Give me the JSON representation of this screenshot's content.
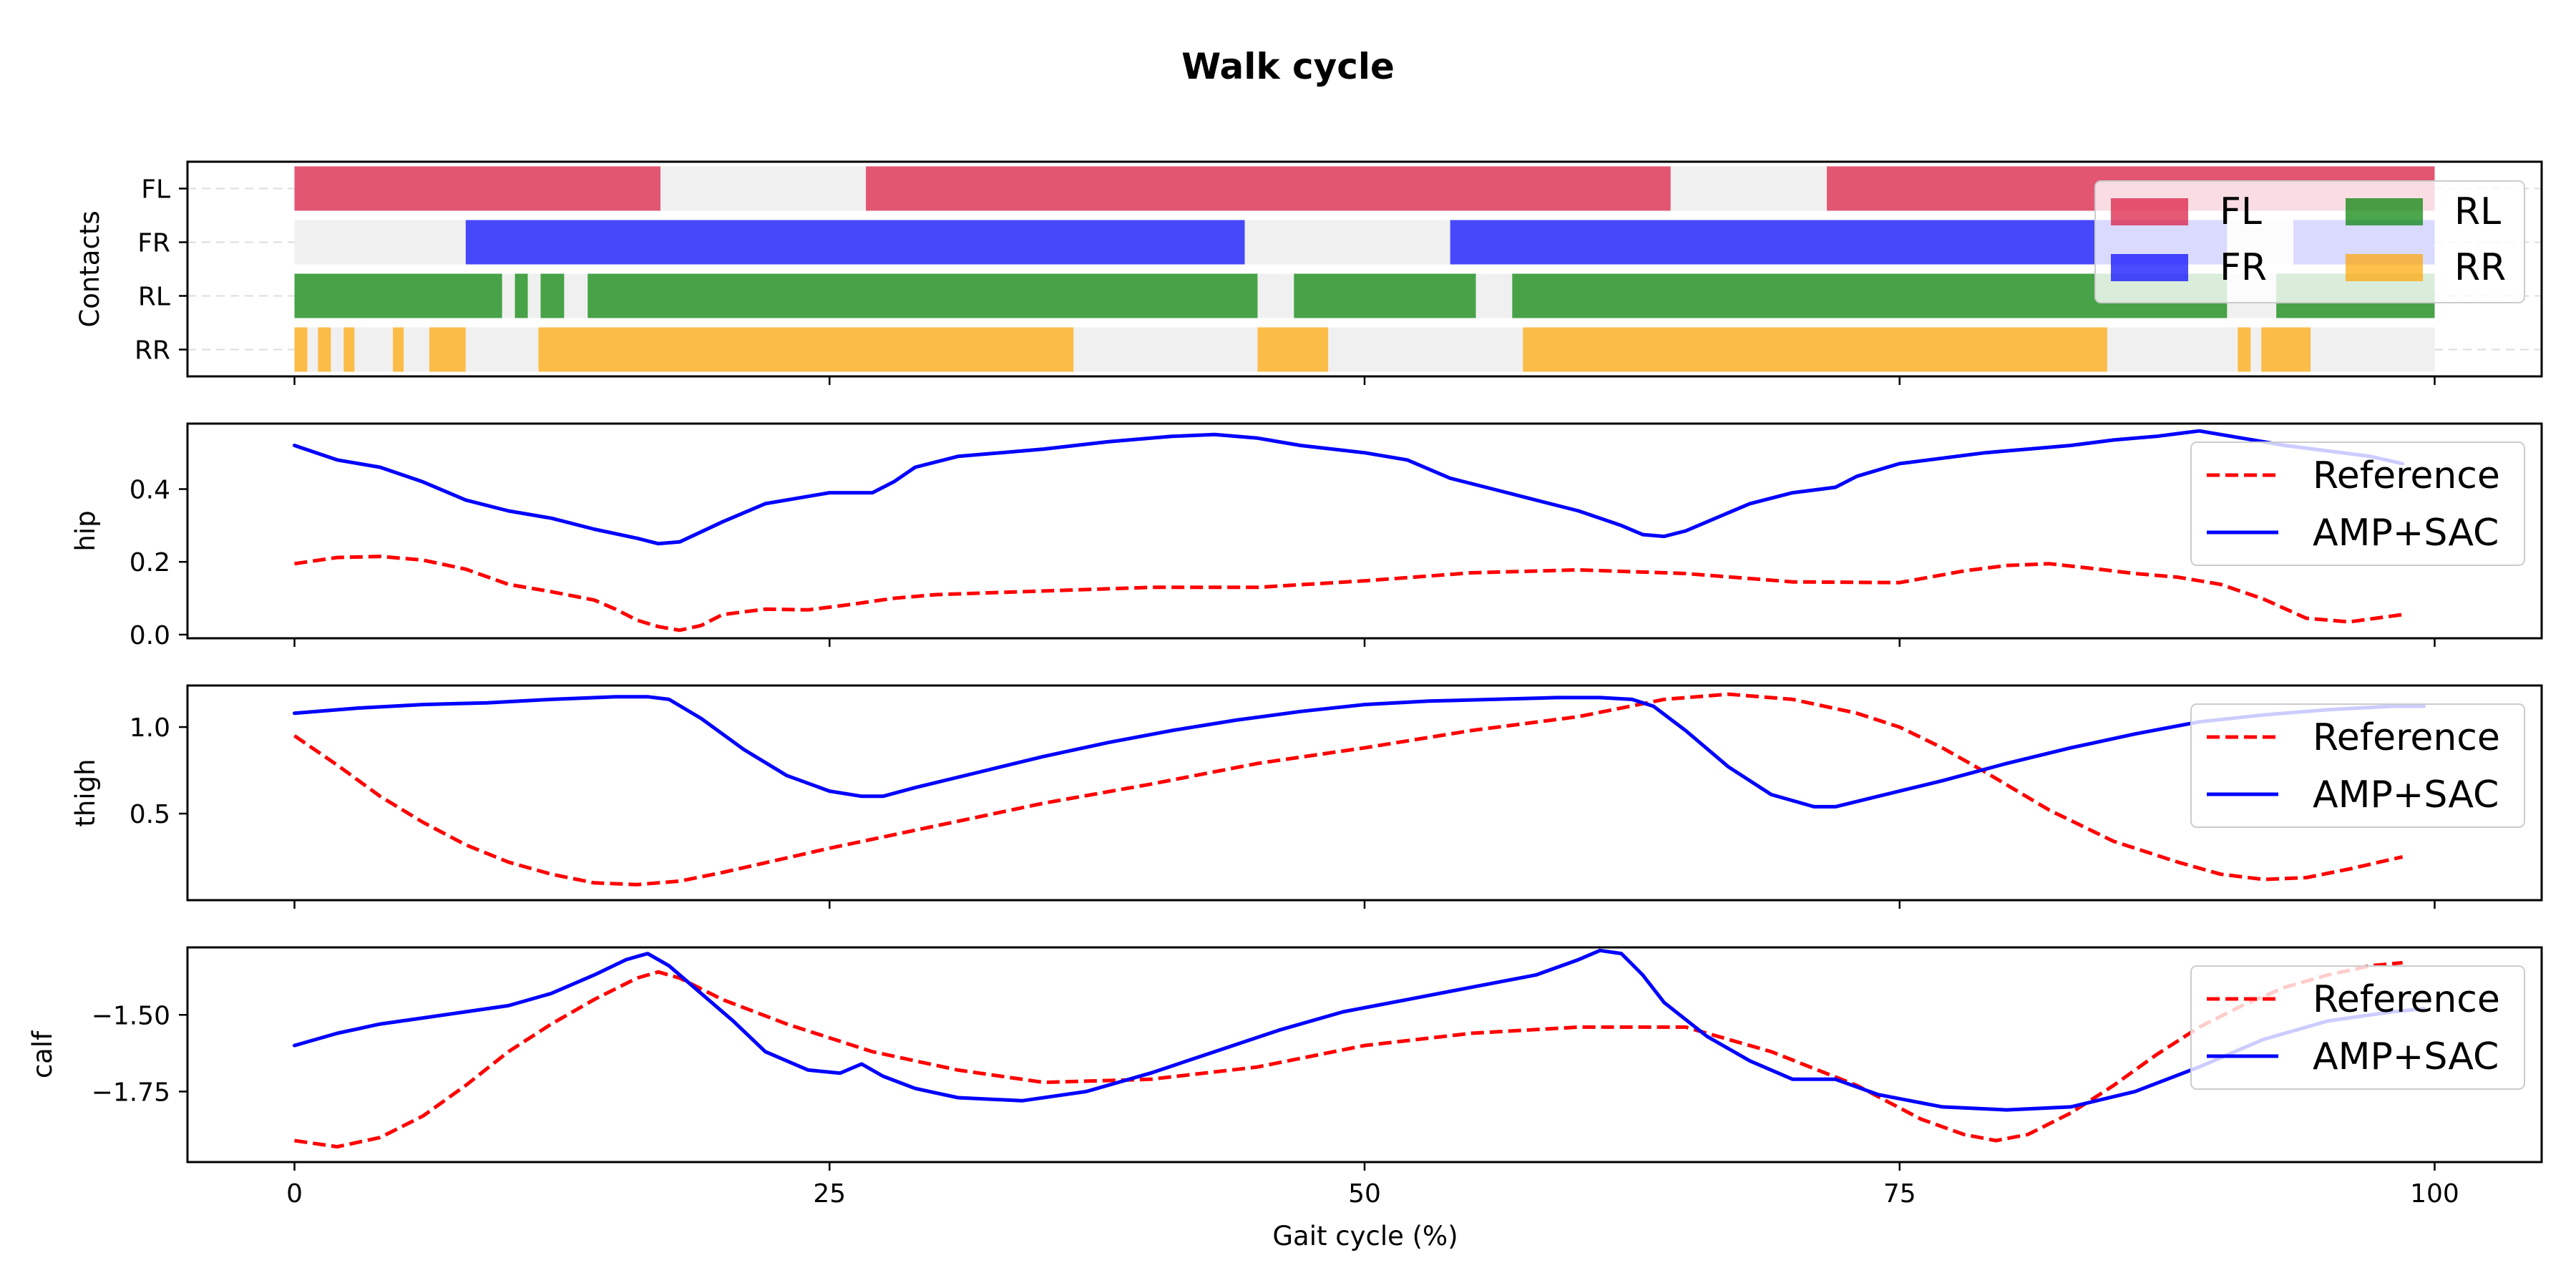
{
  "chart_data": {
    "title": "Walk cycle",
    "type": "multi-panel",
    "xlabel": "Gait cycle (%)",
    "xlim": [
      -5,
      105
    ],
    "xticks": [
      0,
      25,
      50,
      75,
      100
    ],
    "colors": {
      "FL": "#dc143c",
      "FR": "#0000ff",
      "RL": "#008000",
      "RR": "#ffa500",
      "reference": "#ff0000",
      "policy": "#0000ff",
      "background": "#f0f0f0"
    },
    "contacts": {
      "type": "timeline",
      "ylabel": "Contacts",
      "feet": [
        "FL",
        "FR",
        "RL",
        "RR"
      ],
      "legend": [
        "FL",
        "FR",
        "RL",
        "RR"
      ],
      "background_span": [
        0,
        100
      ],
      "intervals": {
        "FL": [
          [
            0,
            17.1
          ],
          [
            26.7,
            64.3
          ],
          [
            71.6,
            100
          ]
        ],
        "FR": [
          [
            8,
            44.4
          ],
          [
            54,
            90.3
          ],
          [
            93.4,
            100
          ]
        ],
        "RL": [
          [
            0,
            9.7
          ],
          [
            10.3,
            10.9
          ],
          [
            11.5,
            12.6
          ],
          [
            13.7,
            45
          ],
          [
            46.7,
            55.2
          ],
          [
            56.9,
            90.3
          ],
          [
            92.6,
            100
          ]
        ],
        "RR": [
          [
            0,
            0.6
          ],
          [
            1.1,
            1.7
          ],
          [
            2.3,
            2.8
          ],
          [
            4.6,
            5.1
          ],
          [
            6.3,
            8
          ],
          [
            11.4,
            36.4
          ],
          [
            45,
            48.3
          ],
          [
            57.4,
            84.7
          ],
          [
            90.8,
            91.4
          ],
          [
            91.9,
            94.2
          ]
        ]
      }
    },
    "series_names": [
      "Reference",
      "AMP+SAC"
    ],
    "panels": [
      {
        "ylabel": "hip",
        "ylim": [
          -0.01,
          0.58
        ],
        "yticks": [
          0.0,
          0.2,
          0.4
        ],
        "ytick_labels": [
          "0.0",
          "0.2",
          "0.4"
        ],
        "series": [
          {
            "name": "Reference",
            "style": "dashed",
            "x": [
              0,
              2,
              4,
              6,
              8,
              10,
              12,
              14,
              15,
              16,
              17,
              18,
              19,
              20,
              22,
              24,
              26,
              28,
              30,
              35,
              40,
              45,
              50,
              55,
              60,
              65,
              70,
              75,
              78,
              80,
              82,
              84,
              86,
              88,
              90,
              92,
              94,
              96,
              98.5
            ],
            "y": [
              0.195,
              0.212,
              0.215,
              0.205,
              0.18,
              0.138,
              0.118,
              0.095,
              0.07,
              0.04,
              0.022,
              0.012,
              0.025,
              0.055,
              0.07,
              0.068,
              0.083,
              0.1,
              0.11,
              0.12,
              0.13,
              0.13,
              0.148,
              0.17,
              0.178,
              0.168,
              0.145,
              0.143,
              0.175,
              0.19,
              0.195,
              0.182,
              0.168,
              0.158,
              0.138,
              0.098,
              0.045,
              0.035,
              0.055
            ]
          },
          {
            "name": "AMP+SAC",
            "style": "solid",
            "x": [
              0,
              2,
              4,
              6,
              8,
              10,
              12,
              14,
              16,
              17,
              18,
              20,
              22,
              24,
              25,
              27,
              28,
              29,
              31,
              33,
              35,
              38,
              41,
              43,
              45,
              47,
              50,
              52,
              54,
              56,
              58,
              60,
              62,
              63,
              64,
              65,
              66,
              68,
              70,
              72,
              73,
              75,
              77,
              79,
              81,
              83,
              85,
              87,
              89,
              91,
              93,
              95,
              97,
              98.5
            ],
            "y": [
              0.52,
              0.48,
              0.46,
              0.42,
              0.37,
              0.34,
              0.32,
              0.29,
              0.265,
              0.25,
              0.255,
              0.31,
              0.36,
              0.38,
              0.39,
              0.39,
              0.42,
              0.46,
              0.49,
              0.5,
              0.51,
              0.53,
              0.545,
              0.55,
              0.54,
              0.52,
              0.5,
              0.48,
              0.43,
              0.4,
              0.37,
              0.34,
              0.3,
              0.275,
              0.27,
              0.285,
              0.31,
              0.36,
              0.39,
              0.405,
              0.435,
              0.47,
              0.485,
              0.5,
              0.51,
              0.52,
              0.535,
              0.545,
              0.56,
              0.54,
              0.52,
              0.505,
              0.49,
              0.47
            ]
          }
        ]
      },
      {
        "ylabel": "thigh",
        "ylim": [
          0.0,
          1.24
        ],
        "yticks": [
          0.5,
          1.0
        ],
        "ytick_labels": [
          "0.5",
          "1.0"
        ],
        "series": [
          {
            "name": "Reference",
            "style": "dashed",
            "x": [
              0,
              2,
              4,
              6,
              8,
              10,
              12,
              14,
              16,
              18,
              20,
              25,
              30,
              35,
              40,
              45,
              50,
              55,
              60,
              64,
              67,
              70,
              73,
              75,
              77,
              79,
              82,
              85,
              88,
              90,
              92,
              94,
              96,
              98.5
            ],
            "y": [
              0.95,
              0.78,
              0.6,
              0.45,
              0.32,
              0.22,
              0.15,
              0.1,
              0.09,
              0.11,
              0.16,
              0.3,
              0.43,
              0.56,
              0.67,
              0.79,
              0.88,
              0.98,
              1.06,
              1.16,
              1.19,
              1.16,
              1.08,
              1.0,
              0.88,
              0.74,
              0.52,
              0.34,
              0.22,
              0.15,
              0.12,
              0.13,
              0.18,
              0.25
            ]
          },
          {
            "name": "AMP+SAC",
            "style": "solid",
            "x": [
              0,
              3,
              6,
              9,
              12,
              15,
              16.5,
              17.5,
              19,
              21,
              23,
              25,
              26.5,
              27.5,
              29,
              32,
              35,
              38,
              41,
              44,
              47,
              50,
              53,
              56,
              59,
              61,
              62.5,
              63.5,
              65,
              67,
              69,
              71,
              72,
              74,
              77,
              80,
              83,
              86,
              89,
              92,
              95,
              98,
              99.5
            ],
            "y": [
              1.08,
              1.11,
              1.13,
              1.14,
              1.16,
              1.175,
              1.175,
              1.16,
              1.05,
              0.87,
              0.72,
              0.63,
              0.6,
              0.6,
              0.65,
              0.74,
              0.83,
              0.91,
              0.98,
              1.04,
              1.09,
              1.13,
              1.15,
              1.16,
              1.17,
              1.17,
              1.16,
              1.12,
              0.98,
              0.77,
              0.61,
              0.54,
              0.54,
              0.6,
              0.69,
              0.79,
              0.88,
              0.96,
              1.03,
              1.07,
              1.1,
              1.12,
              1.12
            ]
          }
        ]
      },
      {
        "ylabel": "calf",
        "ylim": [
          -1.98,
          -1.28
        ],
        "yticks": [
          -1.75,
          -1.5
        ],
        "ytick_labels": [
          "−1.75",
          "−1.50"
        ],
        "series": [
          {
            "name": "Reference",
            "style": "dashed",
            "x": [
              0,
              2,
              4,
              6,
              8,
              10,
              12,
              14,
              16,
              17,
              18,
              20,
              23,
              27,
              31,
              35,
              40,
              45,
              50,
              55,
              60,
              65,
              69,
              73,
              76,
              78,
              79.5,
              81,
              83,
              85,
              87,
              89,
              91,
              93,
              95,
              97,
              98.5
            ],
            "y": [
              -1.91,
              -1.93,
              -1.9,
              -1.83,
              -1.73,
              -1.62,
              -1.53,
              -1.45,
              -1.38,
              -1.36,
              -1.38,
              -1.45,
              -1.53,
              -1.62,
              -1.68,
              -1.72,
              -1.71,
              -1.67,
              -1.6,
              -1.56,
              -1.54,
              -1.54,
              -1.62,
              -1.73,
              -1.84,
              -1.89,
              -1.91,
              -1.89,
              -1.82,
              -1.73,
              -1.63,
              -1.54,
              -1.47,
              -1.41,
              -1.37,
              -1.34,
              -1.33
            ]
          },
          {
            "name": "AMP+SAC",
            "style": "solid",
            "x": [
              0,
              2,
              4,
              6,
              8,
              10,
              12,
              14,
              15.5,
              16.5,
              17.5,
              19,
              20.5,
              22,
              24,
              25.5,
              26.5,
              27.5,
              29,
              31,
              34,
              37,
              40,
              43,
              46,
              49,
              52,
              55,
              58,
              60,
              61,
              62,
              63,
              64,
              66,
              68,
              70,
              72,
              74,
              77,
              80,
              83,
              86,
              89,
              92,
              95,
              98,
              99.5
            ],
            "y": [
              -1.6,
              -1.56,
              -1.53,
              -1.51,
              -1.49,
              -1.47,
              -1.43,
              -1.37,
              -1.32,
              -1.3,
              -1.34,
              -1.43,
              -1.52,
              -1.62,
              -1.68,
              -1.69,
              -1.66,
              -1.7,
              -1.74,
              -1.77,
              -1.78,
              -1.75,
              -1.69,
              -1.62,
              -1.55,
              -1.49,
              -1.45,
              -1.41,
              -1.37,
              -1.32,
              -1.29,
              -1.3,
              -1.37,
              -1.46,
              -1.57,
              -1.65,
              -1.71,
              -1.71,
              -1.76,
              -1.8,
              -1.81,
              -1.8,
              -1.75,
              -1.67,
              -1.58,
              -1.52,
              -1.49,
              -1.48
            ]
          }
        ]
      }
    ]
  }
}
